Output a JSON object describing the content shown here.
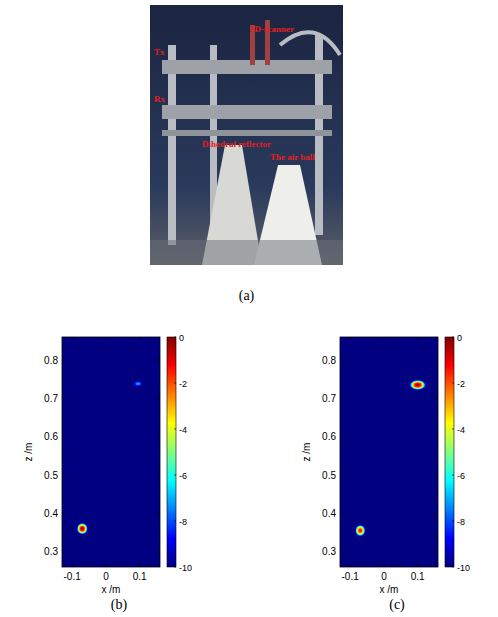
{
  "photo": {
    "label": "(a)",
    "annotations": [
      "2D-scanner",
      "Tx",
      "Rx",
      "Dihedral reflector",
      "The air ball"
    ]
  },
  "chart_data": [
    {
      "type": "heatmap",
      "label": "(b)",
      "x_label": "x /m",
      "y_label": "z /m",
      "xlim": [
        -0.13,
        0.16
      ],
      "ylim": [
        0.26,
        0.86
      ],
      "xticks": [
        -0.1,
        0,
        0.1
      ],
      "yticks": [
        0.3,
        0.4,
        0.5,
        0.6,
        0.7,
        0.8
      ],
      "background": -10,
      "colorbar": {
        "range": [
          -10,
          0
        ],
        "ticks": [
          0,
          -2,
          -4,
          -6,
          -8,
          -10
        ]
      },
      "spots": [
        {
          "x": -0.07,
          "z": 0.36,
          "peak": 0,
          "x_width": 0.016,
          "z_width": 0.015
        },
        {
          "x": 0.095,
          "z": 0.738,
          "peak": -7,
          "x_width": 0.013,
          "z_width": 0.006
        }
      ]
    },
    {
      "type": "heatmap",
      "label": "(c)",
      "x_label": "x /m",
      "y_label": "z /m",
      "xlim": [
        -0.13,
        0.16
      ],
      "ylim": [
        0.26,
        0.86
      ],
      "xticks": [
        -0.1,
        0,
        0.1
      ],
      "yticks": [
        0.3,
        0.4,
        0.5,
        0.6,
        0.7,
        0.8
      ],
      "background": -10,
      "colorbar": {
        "range": [
          -10,
          0
        ],
        "ticks": [
          0,
          -2,
          -4,
          -6,
          -8,
          -10
        ]
      },
      "spots": [
        {
          "x": -0.07,
          "z": 0.355,
          "peak": -1,
          "x_width": 0.015,
          "z_width": 0.015
        },
        {
          "x": 0.1,
          "z": 0.735,
          "peak": 0,
          "x_width": 0.024,
          "z_width": 0.013
        }
      ]
    }
  ]
}
